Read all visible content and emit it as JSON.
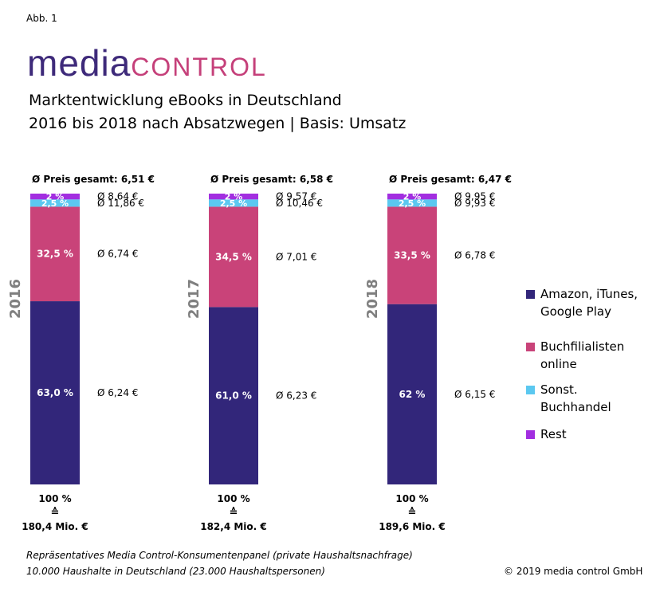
{
  "figure_label": "Abb. 1",
  "logo": {
    "part1": "media",
    "part2": "control"
  },
  "title_line1": "Marktentwicklung eBooks in Deutschland",
  "title_line2": "2016 bis 2018 nach Absatzwegen | Basis: Umsatz",
  "footnote_line1": "Repräsentatives Media Control-Konsumentenpanel (private Haushaltsnachfrage)",
  "footnote_line2": "10.000  Haushalte in  Deutschland (23.000  Haushaltspersonen)",
  "copyright": "© 2019 media control GmbH",
  "chart_data": {
    "type": "bar",
    "stacked": true,
    "categories": [
      "2016",
      "2017",
      "2018"
    ],
    "series": [
      {
        "name": "Amazon, iTunes, Google Play",
        "color": "#32267a",
        "values": [
          63.0,
          61.0,
          62.0
        ],
        "labels": [
          "63,0 %",
          "61,0 %",
          "62 %"
        ],
        "price_labels": [
          "Ø 6,24  €",
          "Ø 6,23  €",
          "Ø 6,15  €"
        ]
      },
      {
        "name": "Buchfilialisten online",
        "color": "#c94379",
        "values": [
          32.5,
          34.5,
          33.5
        ],
        "labels": [
          "32,5 %",
          "34,5 %",
          "33,5 %"
        ],
        "price_labels": [
          "Ø 6,74  €",
          "Ø 7,01  €",
          "Ø 6,78  €"
        ]
      },
      {
        "name": "Sonst. Buchhandel",
        "color": "#5bc8f0",
        "values": [
          2.5,
          2.5,
          2.5
        ],
        "labels": [
          "2,5 %",
          "2,5 %",
          "2,5 %"
        ],
        "price_labels": [
          "Ø 11,86  €",
          "Ø 10,46  €",
          "Ø 9,93  €"
        ]
      },
      {
        "name": "Rest",
        "color": "#a22ee0",
        "values": [
          2,
          2,
          2
        ],
        "labels": [
          "2 %",
          "2 %",
          "2 %"
        ],
        "price_labels": [
          "Ø 8,64  €",
          "Ø 9,57  €",
          "Ø 9,95  €"
        ]
      }
    ],
    "total_price_labels": [
      "Ø Preis gesamt: 6,51  €",
      "Ø Preis gesamt: 6,58  €",
      "Ø Preis gesamt: 6,47  €"
    ],
    "total_percent_label": "100 %",
    "equivalence_symbol": "≙",
    "total_revenue_labels": [
      "180,4  Mio. €",
      "182,4  Mio. €",
      "189,6  Mio. €"
    ],
    "ylim": [
      0,
      100
    ],
    "grid": false,
    "legend_position": "right"
  }
}
